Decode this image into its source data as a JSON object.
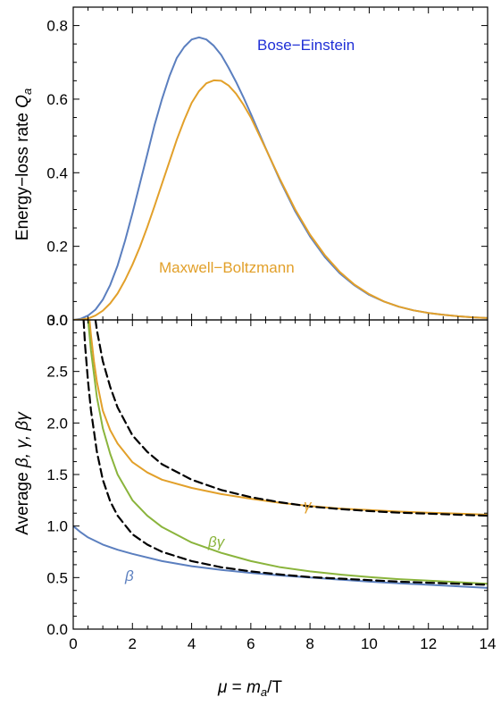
{
  "chart_data": [
    {
      "type": "line",
      "ylabel_prefix": "Energy−loss rate ",
      "ylabel_symbol": "Q",
      "ylabel_subscript": "a",
      "xlim": [
        0,
        14
      ],
      "ylim": [
        0,
        0.85
      ],
      "xticks": [
        0,
        2,
        4,
        6,
        8,
        10,
        12,
        14
      ],
      "yticks": [
        0.0,
        0.2,
        0.4,
        0.6,
        0.8
      ],
      "ytick_labels": [
        "0.0",
        "0.2",
        "0.4",
        "0.6",
        "0.8"
      ],
      "series": [
        {
          "name": "Bose−Einstein",
          "color": "#5b7fbf",
          "label_color": "#1f2fd6",
          "x": [
            0,
            0.25,
            0.5,
            0.75,
            1,
            1.25,
            1.5,
            1.75,
            2,
            2.25,
            2.5,
            2.75,
            3,
            3.25,
            3.5,
            3.75,
            4,
            4.25,
            4.5,
            4.75,
            5,
            5.25,
            5.5,
            5.75,
            6,
            6.5,
            7,
            7.5,
            8,
            8.5,
            9,
            9.5,
            10,
            10.5,
            11,
            11.5,
            12,
            12.5,
            13,
            13.5,
            14
          ],
          "y": [
            0,
            0.003,
            0.012,
            0.028,
            0.055,
            0.095,
            0.148,
            0.215,
            0.29,
            0.37,
            0.45,
            0.53,
            0.6,
            0.662,
            0.712,
            0.742,
            0.762,
            0.768,
            0.762,
            0.745,
            0.72,
            0.685,
            0.647,
            0.605,
            0.56,
            0.467,
            0.377,
            0.295,
            0.227,
            0.171,
            0.127,
            0.094,
            0.068,
            0.05,
            0.036,
            0.026,
            0.019,
            0.014,
            0.01,
            0.007,
            0.005
          ]
        },
        {
          "name": "Maxwell−Boltzmann",
          "color": "#e2a02a",
          "label_color": "#e2a02a",
          "x": [
            0,
            0.25,
            0.5,
            0.75,
            1,
            1.25,
            1.5,
            1.75,
            2,
            2.25,
            2.5,
            2.75,
            3,
            3.25,
            3.5,
            3.75,
            4,
            4.25,
            4.5,
            4.75,
            5,
            5.25,
            5.5,
            5.75,
            6,
            6.5,
            7,
            7.5,
            8,
            8.5,
            9,
            9.5,
            10,
            10.5,
            11,
            11.5,
            12,
            12.5,
            13,
            13.5,
            14
          ],
          "y": [
            0,
            0.001,
            0.004,
            0.012,
            0.025,
            0.045,
            0.072,
            0.108,
            0.15,
            0.198,
            0.252,
            0.31,
            0.37,
            0.43,
            0.49,
            0.543,
            0.59,
            0.622,
            0.643,
            0.651,
            0.65,
            0.637,
            0.615,
            0.585,
            0.55,
            0.466,
            0.38,
            0.3,
            0.232,
            0.176,
            0.131,
            0.096,
            0.07,
            0.05,
            0.036,
            0.026,
            0.019,
            0.014,
            0.01,
            0.007,
            0.005
          ]
        }
      ]
    },
    {
      "type": "line",
      "ylabel_text": "Average  ",
      "ylabel_symbols": "β, γ, βγ",
      "xlabel_mu": "μ",
      "xlabel_eq": " = ",
      "xlabel_m": "m",
      "xlabel_sub": "a",
      "xlabel_tail": "/T",
      "xlim": [
        0,
        14
      ],
      "ylim": [
        0,
        3
      ],
      "xticks": [
        0,
        2,
        4,
        6,
        8,
        10,
        12,
        14
      ],
      "xtick_labels": [
        "0",
        "2",
        "4",
        "6",
        "8",
        "10",
        "12",
        "14"
      ],
      "yticks": [
        0,
        0.5,
        1,
        1.5,
        2,
        2.5,
        3
      ],
      "ytick_labels": [
        "0.0",
        "0.5",
        "1.0",
        "1.5",
        "2.0",
        "2.5",
        "3.0"
      ],
      "series": [
        {
          "name": "γ",
          "color": "#e2a02a",
          "x": [
            0.55,
            0.6,
            0.7,
            0.8,
            1,
            1.25,
            1.5,
            2,
            2.5,
            3,
            4,
            5,
            6,
            7,
            8,
            9,
            10,
            11,
            12,
            13,
            14
          ],
          "y": [
            3.0,
            2.85,
            2.6,
            2.4,
            2.12,
            1.93,
            1.8,
            1.62,
            1.52,
            1.45,
            1.37,
            1.31,
            1.265,
            1.225,
            1.195,
            1.17,
            1.155,
            1.14,
            1.13,
            1.12,
            1.11
          ]
        },
        {
          "name": "βγ",
          "color": "#8ab43c",
          "x": [
            0.5,
            0.6,
            0.8,
            1,
            1.25,
            1.5,
            2,
            2.5,
            3,
            4,
            5,
            6,
            7,
            8,
            9,
            10,
            11,
            12,
            13,
            14
          ],
          "y": [
            3.0,
            2.7,
            2.25,
            1.95,
            1.7,
            1.5,
            1.25,
            1.1,
            0.99,
            0.84,
            0.74,
            0.66,
            0.6,
            0.56,
            0.53,
            0.505,
            0.485,
            0.47,
            0.455,
            0.44
          ]
        },
        {
          "name": "β",
          "color": "#5b7fbf",
          "x": [
            0,
            0.25,
            0.5,
            1,
            1.5,
            2,
            3,
            4,
            5,
            6,
            7,
            8,
            9,
            10,
            11,
            12,
            13,
            14
          ],
          "y": [
            1.0,
            0.94,
            0.89,
            0.82,
            0.77,
            0.73,
            0.66,
            0.61,
            0.575,
            0.545,
            0.52,
            0.5,
            0.48,
            0.46,
            0.445,
            0.43,
            0.415,
            0.4
          ]
        },
        {
          "name": "",
          "color": "#000000",
          "dashed": true,
          "x": [
            0.75,
            0.8,
            1,
            1.25,
            1.5,
            2,
            2.5,
            3,
            4,
            5,
            6,
            7,
            8,
            9,
            10,
            11,
            12,
            13,
            14
          ],
          "y": [
            3.0,
            2.9,
            2.6,
            2.35,
            2.15,
            1.88,
            1.72,
            1.6,
            1.45,
            1.35,
            1.28,
            1.23,
            1.19,
            1.165,
            1.145,
            1.13,
            1.12,
            1.11,
            1.1
          ]
        },
        {
          "name": "",
          "color": "#000000",
          "dashed": true,
          "x": [
            0.35,
            0.4,
            0.5,
            0.6,
            0.8,
            1,
            1.25,
            1.5,
            2,
            2.5,
            3,
            4,
            5,
            6,
            7,
            8,
            9,
            10,
            11,
            12,
            13,
            14
          ],
          "y": [
            3.0,
            2.75,
            2.4,
            2.12,
            1.72,
            1.45,
            1.24,
            1.1,
            0.92,
            0.82,
            0.75,
            0.66,
            0.6,
            0.56,
            0.53,
            0.505,
            0.49,
            0.475,
            0.46,
            0.45,
            0.44,
            0.43
          ]
        }
      ]
    }
  ]
}
